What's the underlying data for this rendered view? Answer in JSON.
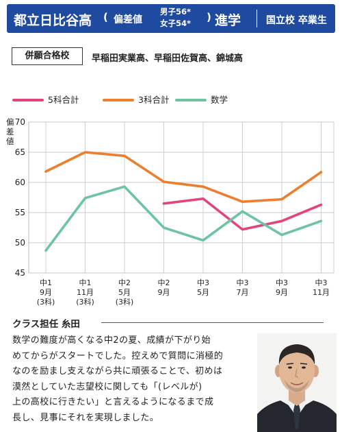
{
  "header": {
    "school": "都立日比谷高",
    "paren_open": "(",
    "hensa_label": "偏差値",
    "male": "男子56*",
    "female": "女子54*",
    "paren_close": ")",
    "shingaku": "進学",
    "grad": "国立校 卒業生"
  },
  "heigan": {
    "label": "併願合格校",
    "schools": "早稲田実業高、早稲田佐賀高、錦城高"
  },
  "chart_data": {
    "type": "line",
    "ylabel": "偏差値",
    "ylim": [
      45,
      70
    ],
    "yticks": [
      "70",
      "65",
      "60",
      "55",
      "50",
      "45"
    ],
    "categories": [
      [
        "中1",
        "9月",
        "(3科)"
      ],
      [
        "中1",
        "11月",
        "(3科)"
      ],
      [
        "中2",
        "5月",
        "(3科)"
      ],
      [
        "中2",
        "9月"
      ],
      [
        "中3",
        "5月"
      ],
      [
        "中3",
        "7月"
      ],
      [
        "中3",
        "9月"
      ],
      [
        "中3",
        "11月"
      ]
    ],
    "series": [
      {
        "name": "5科合計",
        "color": "#e2457a",
        "values": [
          null,
          null,
          null,
          56.5,
          57.3,
          52.2,
          53.6,
          56.3
        ]
      },
      {
        "name": "3科合計",
        "color": "#ec7e2e",
        "values": [
          61.8,
          65.0,
          64.4,
          60.1,
          59.3,
          56.8,
          57.2,
          61.7
        ]
      },
      {
        "name": "数学",
        "color": "#6cc4a1",
        "values": [
          48.7,
          57.4,
          59.3,
          52.5,
          50.4,
          55.2,
          51.3,
          53.6
        ]
      }
    ],
    "grid": true,
    "legend_position": "top"
  },
  "teacher": {
    "heading": "クラス担任 糸田",
    "comment_lines": [
      "数学の難度が高くなる中2の夏、成績が下がり始",
      "めてからがスタートでした。控えめで質問に消極的",
      "なのを励まし支えながら共に頑張ることで、初めは",
      "漠然としていた志望校に関しても「(レベルが)",
      "上の高校に行きたい」と言えるようになるまで成",
      "長し、見事にそれを実現しました。"
    ]
  }
}
